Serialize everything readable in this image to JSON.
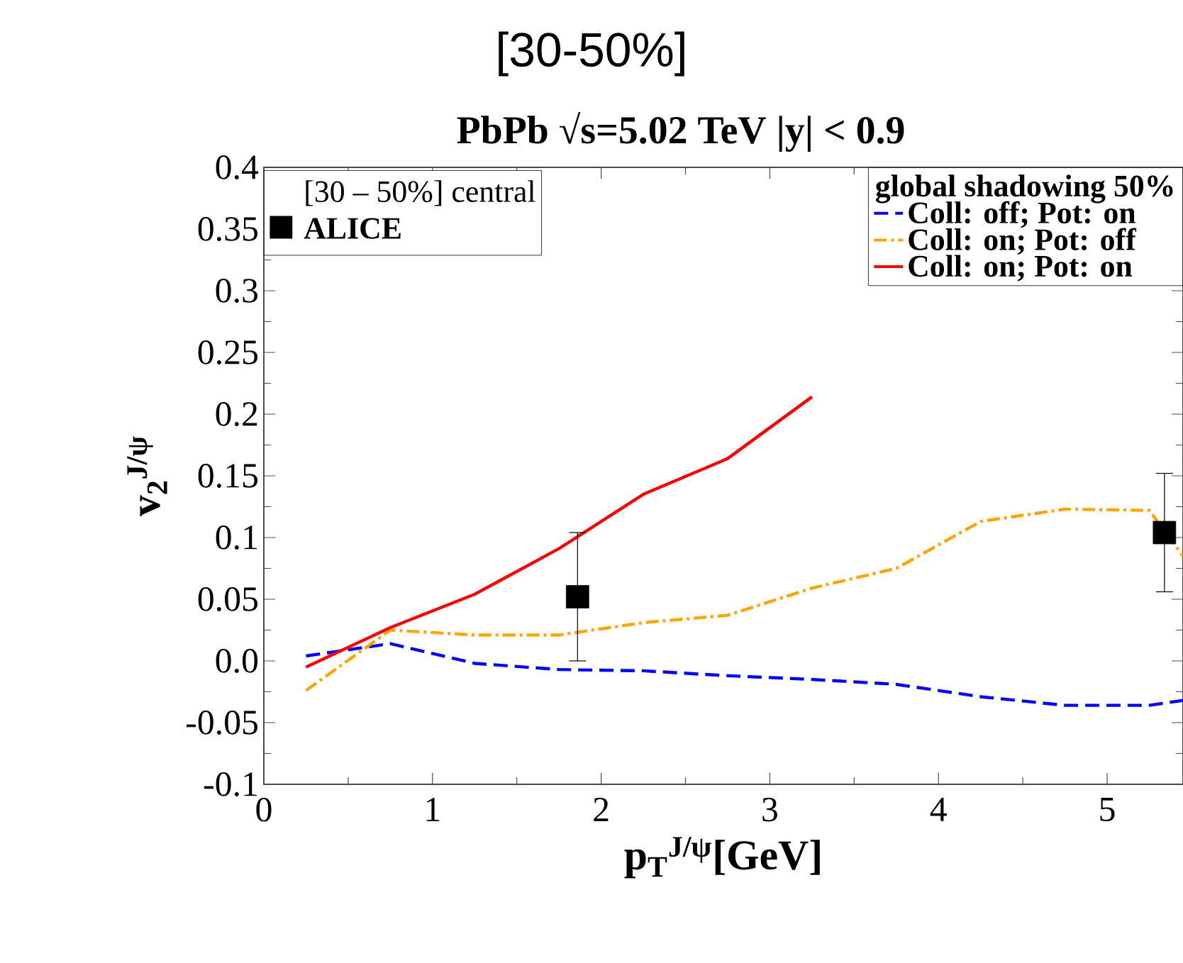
{
  "chart_data": {
    "type": "line",
    "title": "[30-50%]",
    "subtitle": "PbPb √s=5.02 TeV |y| < 0.9",
    "xlabel": "p$_{T}$$^{J/ψ}$[GeV]",
    "ylabel": "v$_{2}$$^{J/ψ}$",
    "legend_title": "global shadowing 50%",
    "legend": "top right",
    "annotations": [
      "[30 – 50%] central"
    ],
    "xlim": [
      0,
      5.45
    ],
    "ylim": [
      -0.1,
      0.4
    ],
    "xticks": [
      0,
      1,
      2,
      3,
      4,
      5
    ],
    "yticks": [
      -0.1,
      -0.05,
      {
        "value": 0,
        "label": "0.0"
      },
      0.05,
      0.1,
      0.15,
      0.2,
      0.25,
      0.3,
      0.35,
      0.4
    ],
    "grid": false,
    "series": [
      {
        "name": "Coll: off; Pot: on",
        "color": "#0000ff",
        "line_style": "dashed",
        "x": [
          0.25,
          0.75,
          1.25,
          1.75,
          2.25,
          2.75,
          3.25,
          3.75,
          4.25,
          4.75,
          5.25,
          5.45
        ],
        "values": [
          0.004,
          0.014,
          -0.002,
          -0.007,
          -0.008,
          -0.012,
          -0.015,
          -0.019,
          -0.029,
          -0.036,
          -0.036,
          -0.032
        ]
      },
      {
        "name": "Coll: on; Pot: off",
        "color": "#ffa500",
        "line_style": "dashdot",
        "x": [
          0.25,
          0.75,
          1.25,
          1.75,
          2.25,
          2.75,
          3.25,
          3.75,
          4.25,
          4.75,
          5.25,
          5.45
        ],
        "values": [
          -0.024,
          0.025,
          0.021,
          0.021,
          0.031,
          0.037,
          0.059,
          0.075,
          0.113,
          0.123,
          0.122,
          0.085
        ]
      },
      {
        "name": "Coll: on; Pot: on",
        "color": "#ff0000",
        "line_style": "solid",
        "x": [
          0.25,
          0.75,
          1.25,
          1.75,
          2.25,
          2.75,
          3.25
        ],
        "values": [
          -0.005,
          0.027,
          0.054,
          0.091,
          0.135,
          0.164,
          0.214
        ]
      },
      {
        "name": "ALICE",
        "type": "scatter",
        "marker": "square",
        "color": "#000000",
        "x": [
          1.86,
          5.34
        ],
        "values": [
          0.052,
          0.104
        ],
        "errors": [
          0.052,
          0.048
        ]
      }
    ]
  }
}
